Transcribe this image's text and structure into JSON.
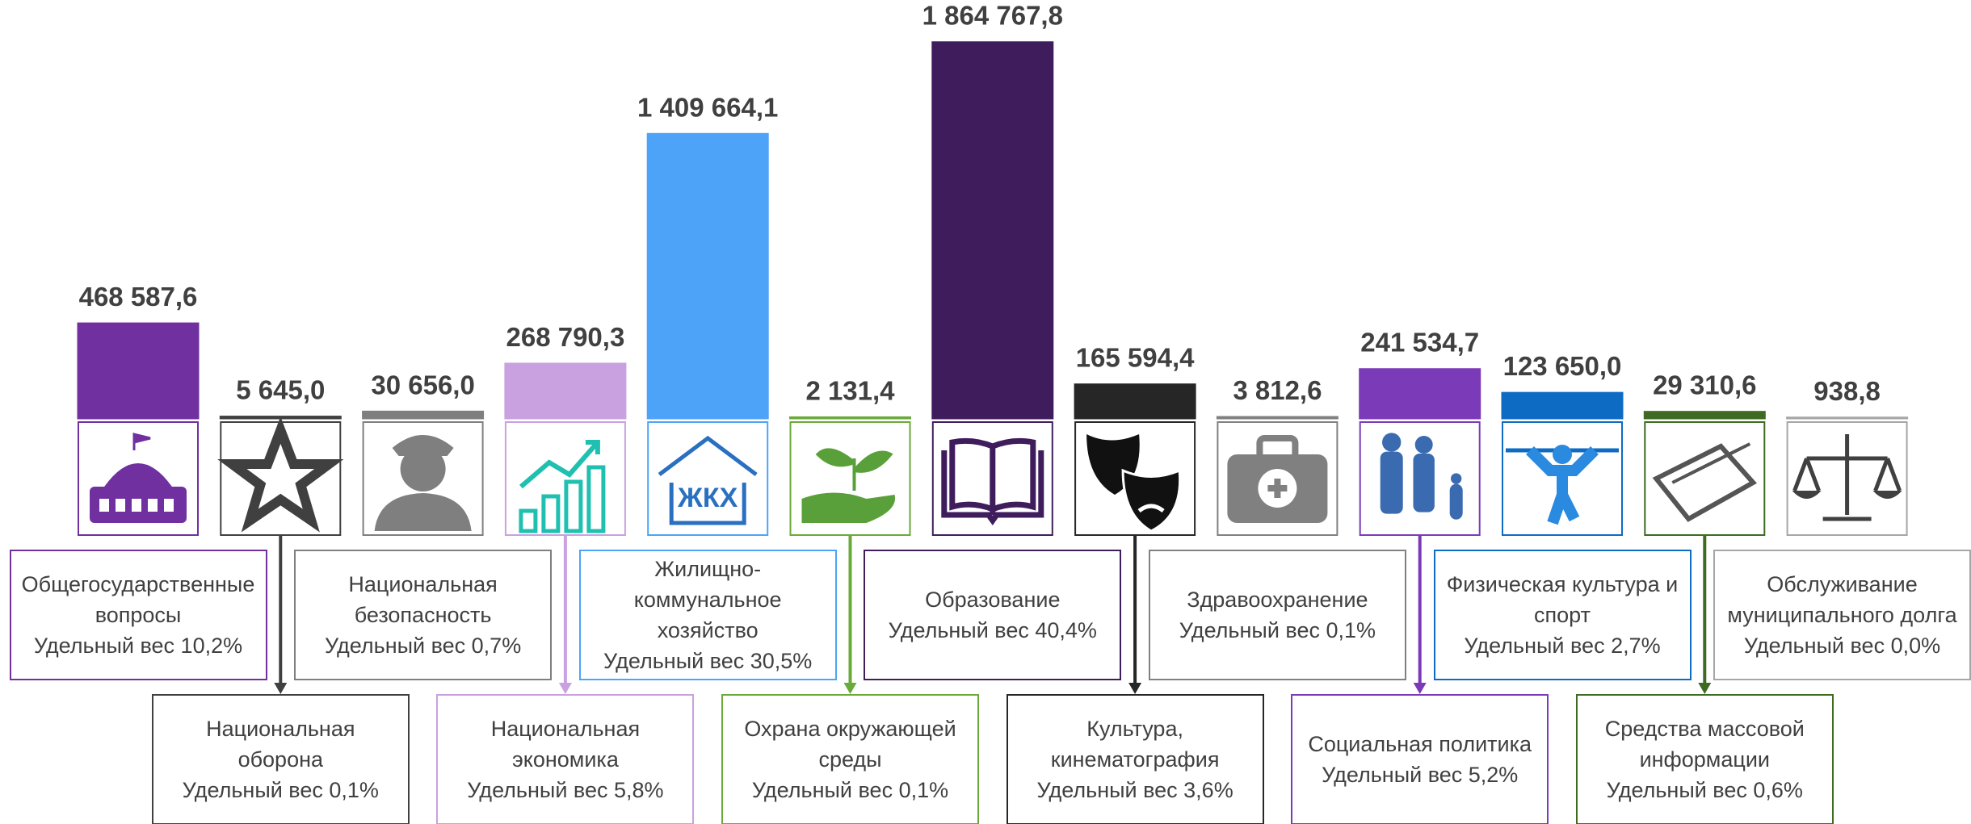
{
  "chart_data": {
    "type": "bar",
    "categories": [
      "Общегосударственные вопросы",
      "Национальная оборона",
      "Национальная безопасность",
      "Национальная экономика",
      "Жилищно-коммунальное хозяйство",
      "Охрана окружающей среды",
      "Образование",
      "Культура, кинематография",
      "Здравоохранение",
      "Социальная политика",
      "Физическая культура и спорт",
      "Средства массовой информации",
      "Обслуживание муниципального долга"
    ],
    "values": [
      468587.6,
      5645.0,
      30656.0,
      268790.3,
      1409664.1,
      2131.4,
      1864767.8,
      165594.4,
      3812.6,
      241534.7,
      123650.0,
      29310.6,
      938.8
    ],
    "value_labels": [
      "468 587,6",
      "5 645,0",
      "30 656,0",
      "268 790,3",
      "1 409 664,1",
      "2 131,4",
      "1 864 767,8",
      "165 594,4",
      "3 812,6",
      "241 534,7",
      "123 650,0",
      "29 310,6",
      "938,8"
    ],
    "share_labels": [
      "Удельный вес 10,2%",
      "Удельный вес 0,1%",
      "Удельный вес 0,7%",
      "Удельный вес 5,8%",
      "Удельный вес 30,5%",
      "Удельный вес 0,1%",
      "Удельный вес 40,4%",
      "Удельный вес 3,6%",
      "Удельный вес 0,1%",
      "Удельный вес 5,2%",
      "Удельный вес 2,7%",
      "Удельный вес 0,6%",
      "Удельный вес 0,0%"
    ],
    "colors": [
      "#7030a0",
      "#404040",
      "#7f7f7f",
      "#c9a0e0",
      "#4da3f8",
      "#6aaa3a",
      "#3f1d5c",
      "#262626",
      "#808080",
      "#7b3ab8",
      "#0e6bc4",
      "#3d6b22",
      "#a6a6a6"
    ],
    "icon_text": "ЖКХ",
    "ylim": [
      0,
      2000000
    ]
  }
}
